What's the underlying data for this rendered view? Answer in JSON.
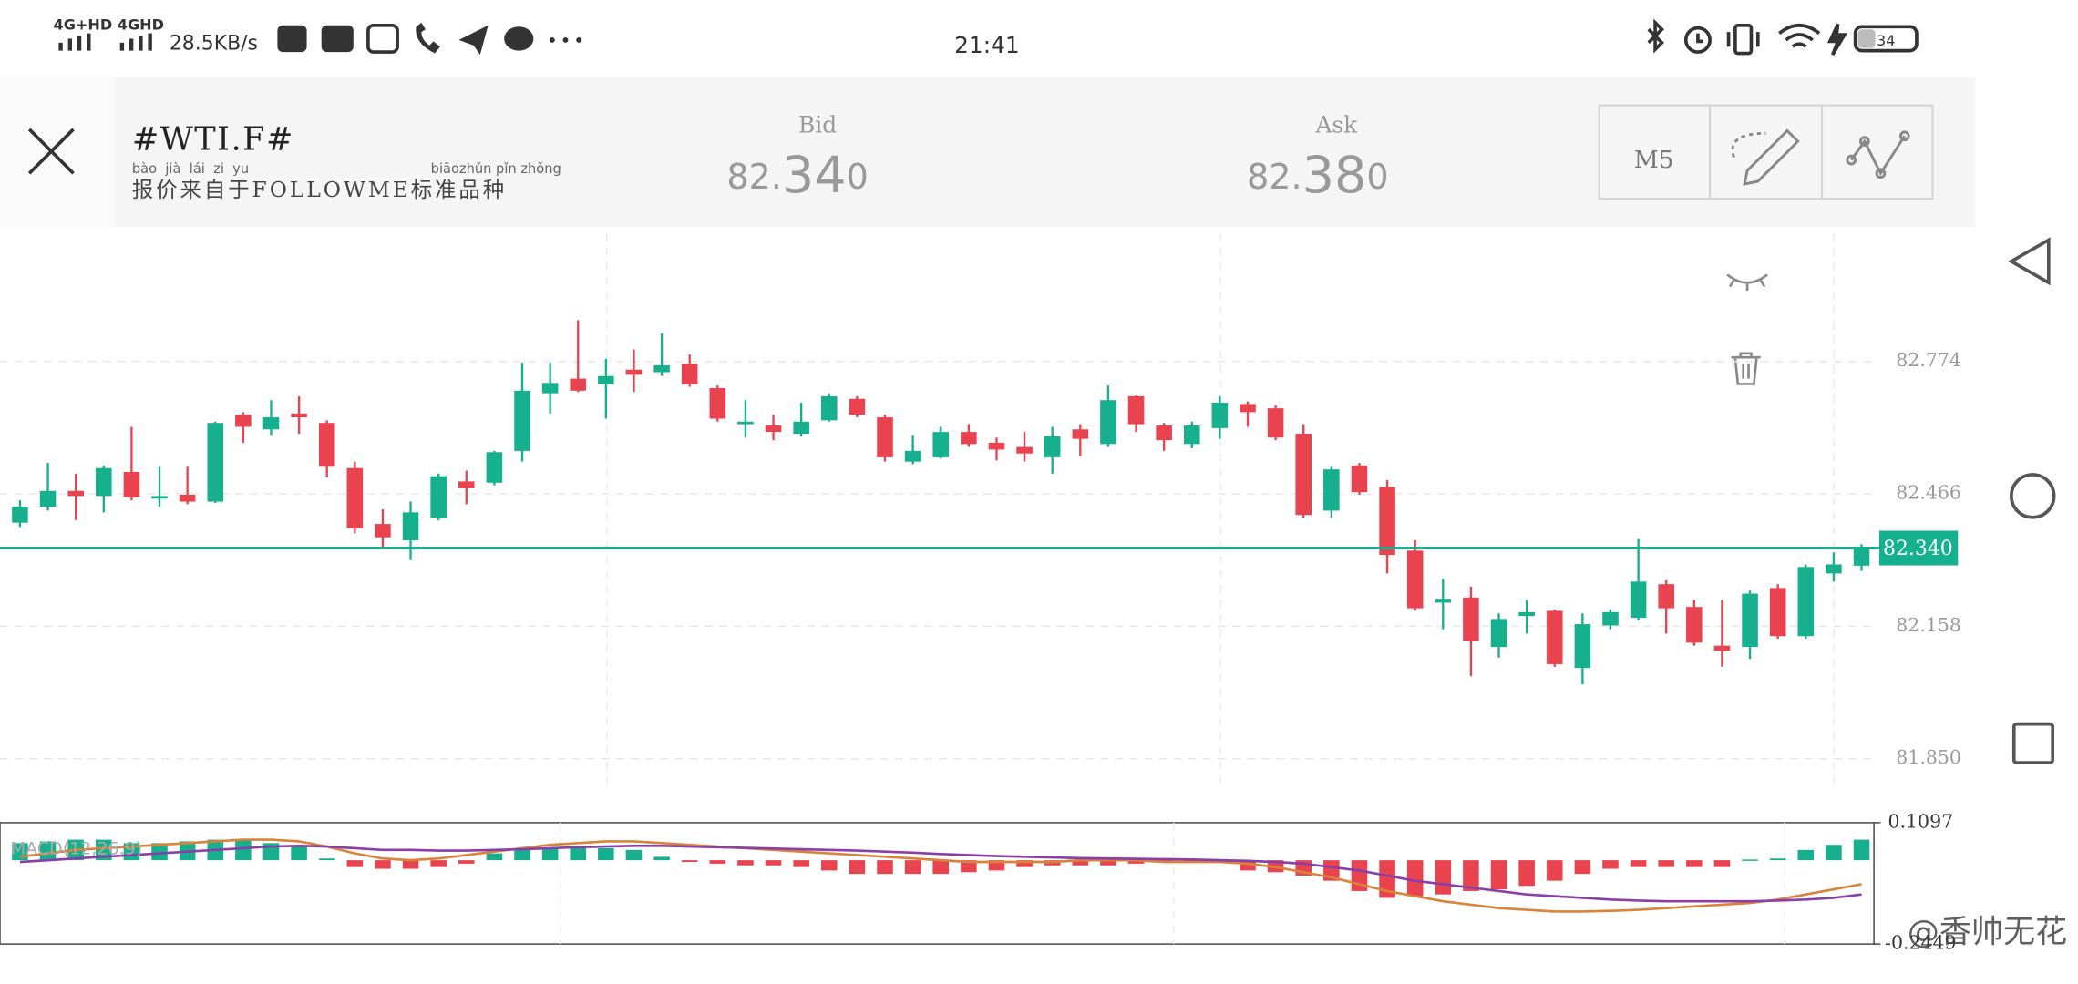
{
  "status_bar": {
    "network1": "4G+HD",
    "network2": "4GHD",
    "speed": "28.5KB/s",
    "time": "21:41",
    "battery": "34"
  },
  "header": {
    "symbol": "#WTI.F#",
    "pinyin_a": "bào  jià  lái  zi  yu",
    "pinyin_b": "biāozhǔn pǐn zhǒng",
    "source": "报价来自于FOLLOWME标准品种",
    "bid": {
      "label": "Bid",
      "parts": [
        "82.",
        "34",
        "0"
      ]
    },
    "ask": {
      "label": "Ask",
      "parts": [
        "82.",
        "38",
        "0"
      ]
    },
    "timeframe": "M5"
  },
  "watermark": "@香帅无花",
  "chart_data": [
    {
      "type": "candlestick",
      "up_color": "#16b08f",
      "down_color": "#e8434f",
      "ylim": [
        81.785,
        83.072
      ],
      "yticks": [
        {
          "value": 81.85,
          "label": "81.850"
        },
        82.158,
        82.466,
        82.774
      ],
      "grid": true,
      "current_price": {
        "value": 82.34,
        "label": "82.340",
        "color": "#16b08f"
      },
      "candles": [
        [
          82.399,
          82.451,
          82.389,
          82.436
        ],
        [
          82.436,
          82.538,
          82.427,
          82.473
        ],
        [
          82.473,
          82.513,
          82.405,
          82.461
        ],
        [
          82.461,
          82.532,
          82.423,
          82.526
        ],
        [
          82.517,
          82.622,
          82.451,
          82.458
        ],
        [
          82.455,
          82.529,
          82.436,
          82.461
        ],
        [
          82.464,
          82.529,
          82.442,
          82.448
        ],
        [
          82.448,
          82.634,
          82.445,
          82.631
        ],
        [
          82.65,
          82.656,
          82.585,
          82.622
        ],
        [
          82.616,
          82.684,
          82.603,
          82.644
        ],
        [
          82.653,
          82.693,
          82.606,
          82.644
        ],
        [
          82.631,
          82.637,
          82.504,
          82.529
        ],
        [
          82.526,
          82.541,
          82.374,
          82.386
        ],
        [
          82.396,
          82.43,
          82.343,
          82.365
        ],
        [
          82.358,
          82.448,
          82.312,
          82.423
        ],
        [
          82.411,
          82.513,
          82.405,
          82.507
        ],
        [
          82.495,
          82.52,
          82.442,
          82.479
        ],
        [
          82.492,
          82.566,
          82.486,
          82.563
        ],
        [
          82.566,
          82.771,
          82.541,
          82.706
        ],
        [
          82.7,
          82.771,
          82.653,
          82.724
        ],
        [
          82.734,
          82.87,
          82.703,
          82.706
        ],
        [
          82.721,
          82.78,
          82.641,
          82.74
        ],
        [
          82.755,
          82.802,
          82.703,
          82.743
        ],
        [
          82.749,
          82.839,
          82.74,
          82.765
        ],
        [
          82.768,
          82.79,
          82.715,
          82.721
        ],
        [
          82.712,
          82.718,
          82.634,
          82.641
        ],
        [
          82.628,
          82.684,
          82.597,
          82.634
        ],
        [
          82.625,
          82.65,
          82.591,
          82.61
        ],
        [
          82.606,
          82.678,
          82.6,
          82.634
        ],
        [
          82.637,
          82.7,
          82.634,
          82.693
        ],
        [
          82.687,
          82.693,
          82.644,
          82.65
        ],
        [
          82.644,
          82.65,
          82.541,
          82.551
        ],
        [
          82.541,
          82.603,
          82.535,
          82.566
        ],
        [
          82.551,
          82.622,
          82.548,
          82.61
        ],
        [
          82.61,
          82.628,
          82.575,
          82.582
        ],
        [
          82.585,
          82.597,
          82.544,
          82.569
        ],
        [
          82.575,
          82.61,
          82.541,
          82.56
        ],
        [
          82.551,
          82.622,
          82.513,
          82.6
        ],
        [
          82.616,
          82.628,
          82.554,
          82.594
        ],
        [
          82.582,
          82.718,
          82.575,
          82.684
        ],
        [
          82.693,
          82.696,
          82.61,
          82.628
        ],
        [
          82.625,
          82.631,
          82.566,
          82.591
        ],
        [
          82.582,
          82.634,
          82.572,
          82.625
        ],
        [
          82.619,
          82.693,
          82.594,
          82.678
        ],
        [
          82.675,
          82.681,
          82.622,
          82.656
        ],
        [
          82.665,
          82.672,
          82.591,
          82.597
        ],
        [
          82.606,
          82.628,
          82.411,
          82.417
        ],
        [
          82.427,
          82.529,
          82.411,
          82.523
        ],
        [
          82.532,
          82.538,
          82.464,
          82.47
        ],
        [
          82.482,
          82.498,
          82.281,
          82.324
        ],
        [
          82.334,
          82.358,
          82.194,
          82.2
        ],
        [
          82.213,
          82.268,
          82.151,
          82.222
        ],
        [
          82.225,
          82.25,
          82.042,
          82.123
        ],
        [
          82.11,
          82.188,
          82.085,
          82.175
        ],
        [
          82.182,
          82.219,
          82.141,
          82.191
        ],
        [
          82.194,
          82.197,
          82.064,
          82.07
        ],
        [
          82.061,
          82.188,
          82.023,
          82.163
        ],
        [
          82.16,
          82.197,
          82.151,
          82.191
        ],
        [
          82.178,
          82.361,
          82.172,
          82.262
        ],
        [
          82.256,
          82.265,
          82.141,
          82.2
        ],
        [
          82.203,
          82.219,
          82.113,
          82.12
        ],
        [
          82.113,
          82.219,
          82.064,
          82.101
        ],
        [
          82.11,
          82.241,
          82.082,
          82.234
        ],
        [
          82.247,
          82.256,
          82.129,
          82.135
        ],
        [
          82.135,
          82.302,
          82.129,
          82.296
        ],
        [
          82.281,
          82.33,
          82.262,
          82.302
        ],
        [
          82.299,
          82.349,
          82.287,
          82.34
        ]
      ]
    },
    {
      "type": "macd",
      "title": "MACD(12,26,9)",
      "ylim": [
        -0.2449,
        0.1097
      ],
      "yticks": [
        -0.2449,
        0.1097
      ],
      "up_color": "#16b08f",
      "down_color": "#e8434f",
      "histogram": [
        0.05,
        0.055,
        0.06,
        0.06,
        0.05,
        0.05,
        0.055,
        0.06,
        0.06,
        0.05,
        0.04,
        0.005,
        -0.02,
        -0.025,
        -0.025,
        -0.02,
        -0.01,
        0.02,
        0.03,
        0.035,
        0.035,
        0.035,
        0.03,
        0.01,
        -0.005,
        -0.01,
        -0.015,
        -0.015,
        -0.02,
        -0.03,
        -0.04,
        -0.04,
        -0.04,
        -0.04,
        -0.035,
        -0.03,
        -0.02,
        -0.015,
        -0.015,
        -0.015,
        -0.01,
        -0.005,
        -0.002,
        -0.005,
        -0.03,
        -0.035,
        -0.045,
        -0.06,
        -0.09,
        -0.11,
        -0.105,
        -0.1,
        -0.09,
        -0.085,
        -0.075,
        -0.06,
        -0.04,
        -0.025,
        -0.02,
        -0.02,
        -0.02,
        -0.02,
        0.002,
        0.005,
        0.03,
        0.045,
        0.06
      ],
      "series": [
        {
          "color": "#d9833a",
          "values": [
            0.01,
            0.02,
            0.03,
            0.035,
            0.04,
            0.045,
            0.05,
            0.055,
            0.06,
            0.06,
            0.055,
            0.04,
            0.02,
            0.005,
            0,
            0.005,
            0.015,
            0.025,
            0.035,
            0.045,
            0.05,
            0.055,
            0.055,
            0.05,
            0.045,
            0.04,
            0.035,
            0.03,
            0.025,
            0.02,
            0.015,
            0.01,
            0.005,
            0,
            -0.005,
            -0.005,
            -0.005,
            -0.005,
            0,
            0,
            0,
            -0.005,
            -0.005,
            -0.005,
            -0.01,
            -0.02,
            -0.035,
            -0.05,
            -0.07,
            -0.09,
            -0.105,
            -0.12,
            -0.13,
            -0.14,
            -0.145,
            -0.15,
            -0.15,
            -0.148,
            -0.145,
            -0.14,
            -0.135,
            -0.13,
            -0.125,
            -0.115,
            -0.1,
            -0.085,
            -0.07
          ]
        },
        {
          "color": "#8a3fa8",
          "values": [
            -0.005,
            0,
            0.005,
            0.01,
            0.015,
            0.02,
            0.025,
            0.03,
            0.035,
            0.04,
            0.042,
            0.04,
            0.035,
            0.03,
            0.03,
            0.028,
            0.028,
            0.03,
            0.032,
            0.035,
            0.038,
            0.04,
            0.042,
            0.042,
            0.04,
            0.038,
            0.036,
            0.034,
            0.032,
            0.03,
            0.028,
            0.025,
            0.022,
            0.018,
            0.015,
            0.012,
            0.01,
            0.008,
            0.006,
            0.005,
            0.004,
            0.003,
            0.002,
            0,
            -0.002,
            -0.005,
            -0.01,
            -0.02,
            -0.03,
            -0.045,
            -0.06,
            -0.07,
            -0.08,
            -0.09,
            -0.1,
            -0.105,
            -0.11,
            -0.115,
            -0.118,
            -0.12,
            -0.12,
            -0.12,
            -0.12,
            -0.118,
            -0.115,
            -0.11,
            -0.1
          ]
        }
      ]
    }
  ]
}
